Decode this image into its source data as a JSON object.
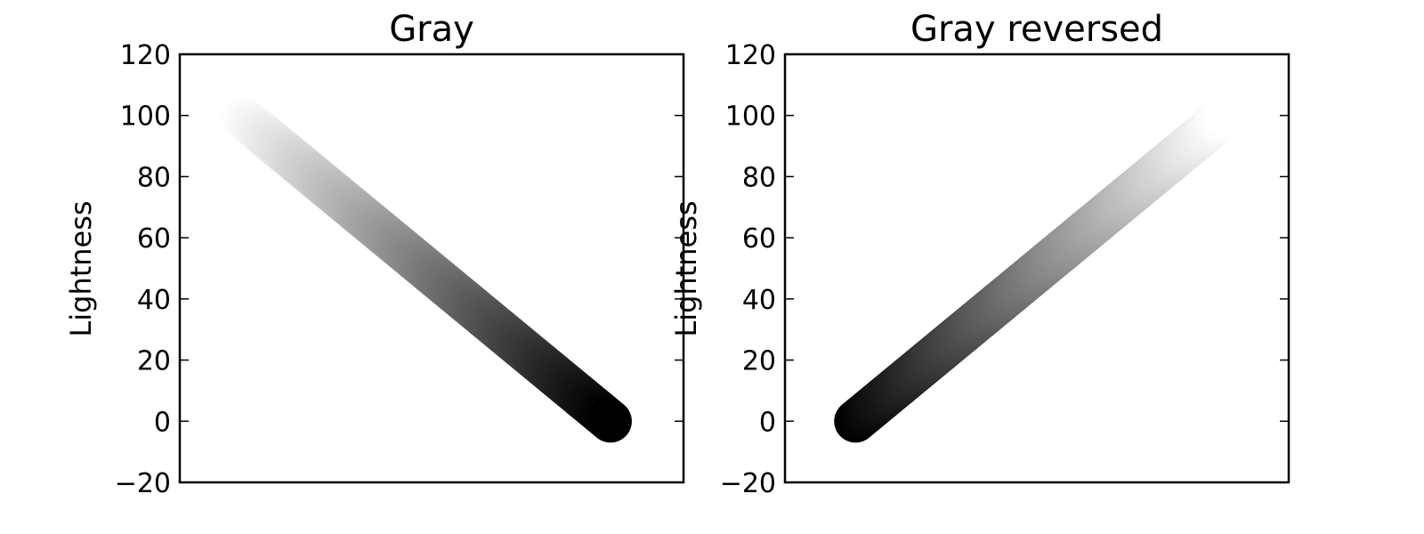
{
  "chart_data": [
    {
      "type": "scatter",
      "title": "Gray",
      "xlabel": "",
      "ylabel": "Lightness",
      "ylim": [
        -20,
        120
      ],
      "xlim": [
        0,
        1
      ],
      "yticks": [
        -20,
        0,
        20,
        40,
        60,
        80,
        100,
        120
      ],
      "ytick_labels": [
        "−20",
        "0",
        "20",
        "40",
        "60",
        "80",
        "100",
        "120"
      ],
      "xticks_visible": false,
      "grid": false,
      "colormap": "gray",
      "line": {
        "x_start": 0.12,
        "x_end": 0.855,
        "lightness_start": 100,
        "lightness_end": 0,
        "color_start": "#ffffff",
        "color_end": "#000000"
      }
    },
    {
      "type": "scatter",
      "title": "Gray reversed",
      "xlabel": "",
      "ylabel": "Lightness",
      "ylim": [
        -20,
        120
      ],
      "xlim": [
        0,
        1
      ],
      "yticks": [
        -20,
        0,
        20,
        40,
        60,
        80,
        100,
        120
      ],
      "ytick_labels": [
        "−20",
        "0",
        "20",
        "40",
        "60",
        "80",
        "100",
        "120"
      ],
      "xticks_visible": false,
      "grid": false,
      "colormap": "gray_r",
      "line": {
        "x_start": 0.14,
        "x_end": 0.875,
        "lightness_start": 0,
        "lightness_end": 100,
        "color_start": "#000000",
        "color_end": "#ffffff"
      }
    }
  ]
}
